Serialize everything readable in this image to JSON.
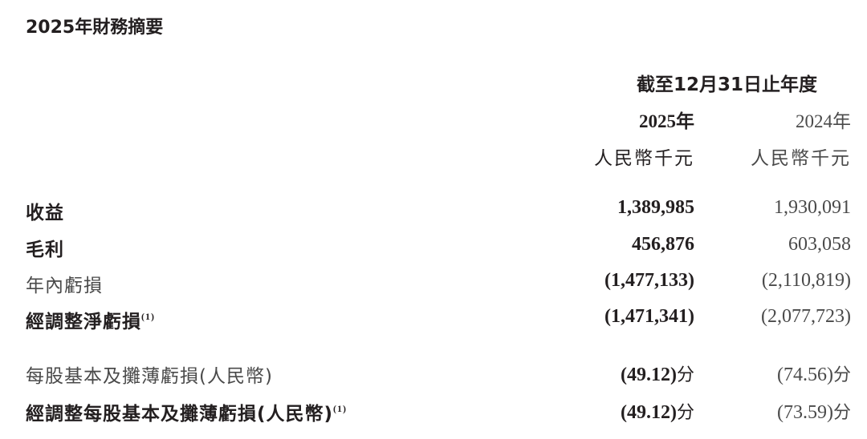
{
  "title": "2025年財務摘要",
  "header": {
    "period": "截至12月31日止年度",
    "col_2025_year": "2025年",
    "col_2024_year": "2024年",
    "col_2025_unit": "人民幣千元",
    "col_2024_unit": "人民幣千元"
  },
  "rows": [
    {
      "label": "收益",
      "note": "",
      "v2025": "1,389,985",
      "v2024": "1,930,091",
      "unit": ""
    },
    {
      "label": "毛利",
      "note": "",
      "v2025": "456,876",
      "v2024": "603,058",
      "unit": ""
    },
    {
      "label": "年內虧損",
      "note": "",
      "v2025": "(1,477,133)",
      "v2024": "(2,110,819)",
      "unit": ""
    },
    {
      "label": "經調整淨虧損",
      "note": "(1)",
      "v2025": "(1,471,341)",
      "v2024": "(2,077,723)",
      "unit": ""
    },
    {
      "label": "每股基本及攤薄虧損(人民幣)",
      "note": "",
      "v2025": "(49.12)",
      "v2024": "(74.56)",
      "unit": "分"
    },
    {
      "label": "經調整每股基本及攤薄虧損(人民幣)",
      "note": "(1)",
      "v2025": "(49.12)",
      "v2024": "(73.59)",
      "unit": "分"
    }
  ]
}
